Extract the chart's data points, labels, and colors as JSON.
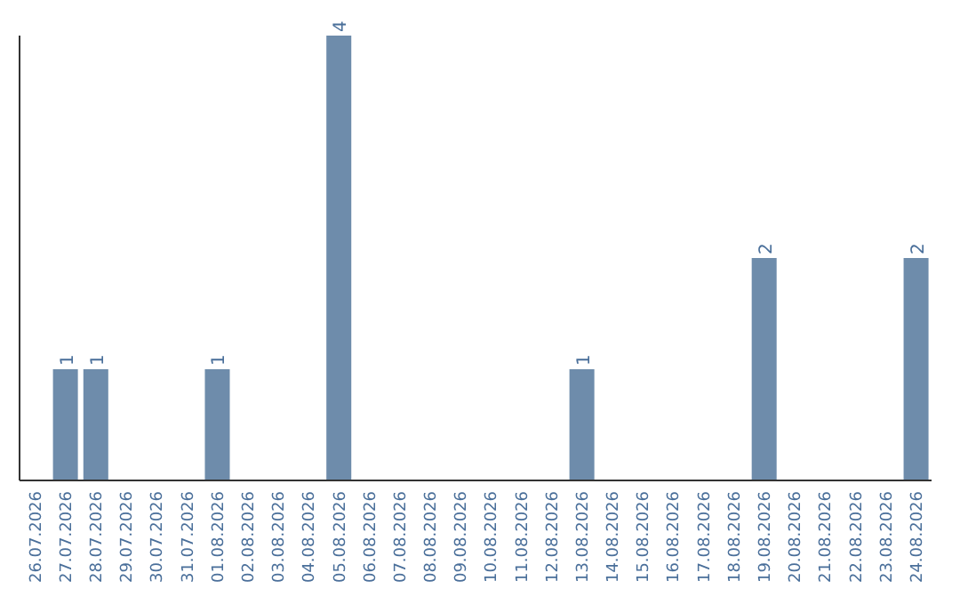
{
  "chart_data": {
    "type": "bar",
    "categories": [
      "26.07.2026",
      "27.07.2026",
      "28.07.2026",
      "29.07.2026",
      "30.07.2026",
      "31.07.2026",
      "01.08.2026",
      "02.08.2026",
      "03.08.2026",
      "04.08.2026",
      "05.08.2026",
      "06.08.2026",
      "07.08.2026",
      "08.08.2026",
      "09.08.2026",
      "10.08.2026",
      "11.08.2026",
      "12.08.2026",
      "13.08.2026",
      "14.08.2026",
      "15.08.2026",
      "16.08.2026",
      "17.08.2026",
      "18.08.2026",
      "19.08.2026",
      "20.08.2026",
      "21.08.2026",
      "22.08.2026",
      "23.08.2026",
      "24.08.2026"
    ],
    "values": [
      0,
      1,
      1,
      0,
      0,
      0,
      1,
      0,
      0,
      0,
      4,
      0,
      0,
      0,
      0,
      0,
      0,
      0,
      1,
      0,
      0,
      0,
      0,
      0,
      2,
      0,
      0,
      0,
      0,
      2
    ],
    "value_labels": [
      null,
      "1",
      "1",
      null,
      null,
      null,
      "1",
      null,
      null,
      null,
      "4",
      null,
      null,
      null,
      null,
      null,
      null,
      null,
      "1",
      null,
      null,
      null,
      null,
      null,
      "2",
      null,
      null,
      null,
      null,
      "2"
    ],
    "color": "#6e8cab",
    "ylim": [
      0,
      4
    ],
    "tick_labels": "x"
  }
}
